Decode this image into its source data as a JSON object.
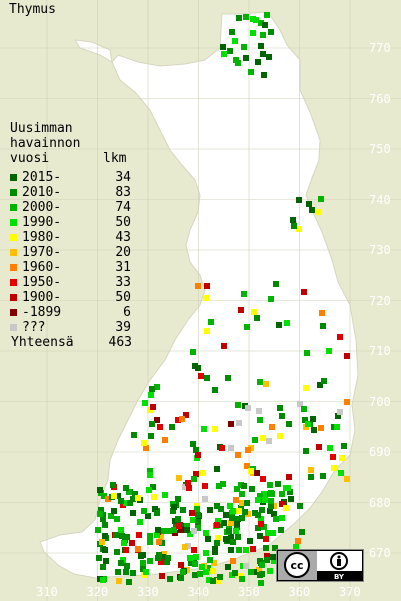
{
  "title": "Thymus",
  "legend": {
    "heading": [
      "Uusimman",
      "havainnon"
    ],
    "col_year": "vuosi",
    "col_count": "lkm",
    "rows": [
      {
        "label": "2015-",
        "count": "34",
        "color": "#006400"
      },
      {
        "label": "2010-",
        "count": "83",
        "color": "#008a00"
      },
      {
        "label": "2000-",
        "count": "74",
        "color": "#00b400"
      },
      {
        "label": "1990-",
        "count": "50",
        "color": "#00e000"
      },
      {
        "label": "1980-",
        "count": "43",
        "color": "#ffff00"
      },
      {
        "label": "1970-",
        "count": "20",
        "color": "#ffbf00"
      },
      {
        "label": "1960-",
        "count": "31",
        "color": "#ff7f00"
      },
      {
        "label": "1950-",
        "count": "33",
        "color": "#e00000"
      },
      {
        "label": "1900-",
        "count": "50",
        "color": "#c00000"
      },
      {
        "label": "-1899",
        "count": "6",
        "color": "#800000"
      },
      {
        "label": "???",
        "count": "39",
        "color": "#c8c8c8"
      }
    ],
    "total_label": "Yhteensä",
    "total_count": "463"
  },
  "y_ticks": [
    "770",
    "760",
    "750",
    "740",
    "730",
    "720",
    "710",
    "700",
    "690",
    "680",
    "670"
  ],
  "x_ticks": [
    "310",
    "320",
    "330",
    "340",
    "350",
    "360",
    "370"
  ],
  "license": {
    "icon": "cc-by-icon",
    "text": "BY"
  },
  "colors": {
    "background": "#e8ead0",
    "land": "#ffffff",
    "grid": "#cfd0b8"
  }
}
